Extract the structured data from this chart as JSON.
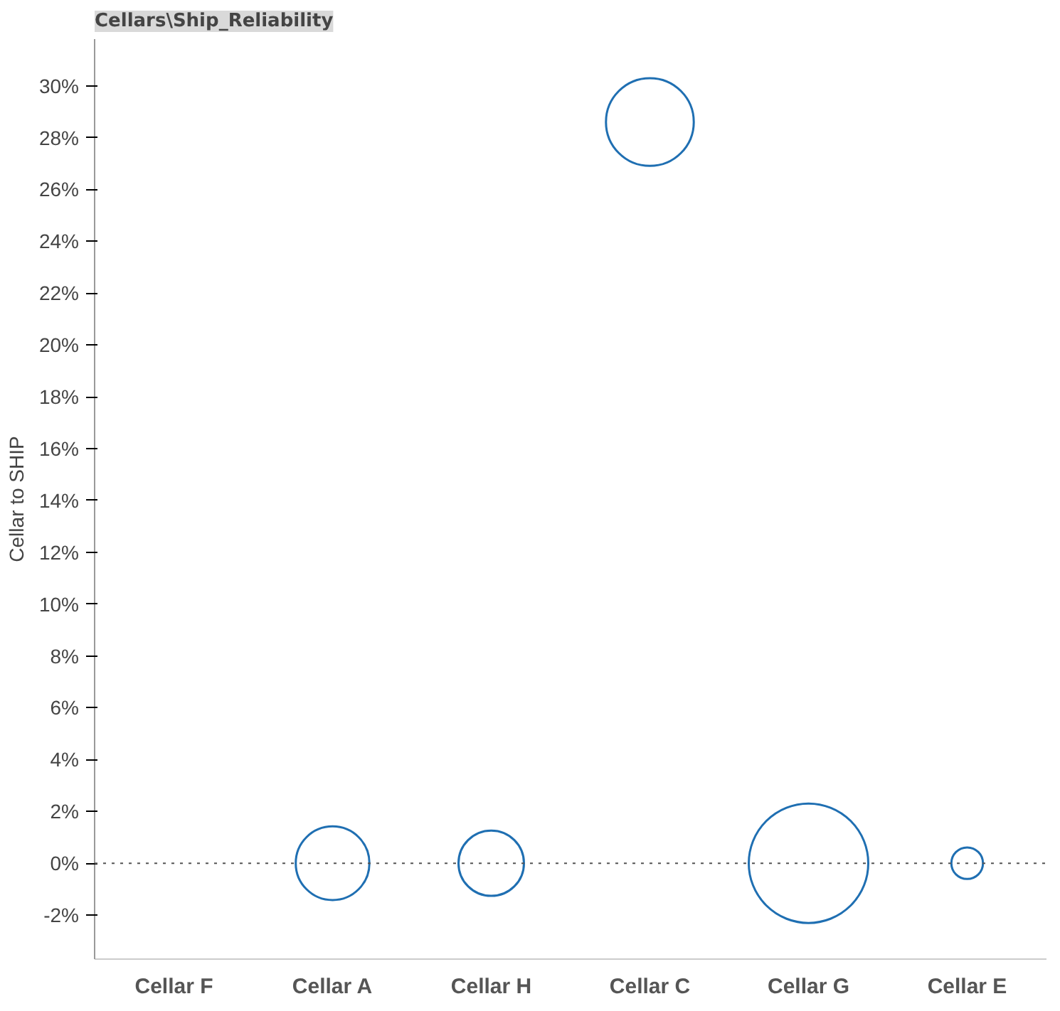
{
  "chart_data": {
    "type": "bubble",
    "title": "Cellars\\Ship_Reliability",
    "ylabel": "Cellar to SHIP",
    "categories": [
      "Cellar F",
      "Cellar A",
      "Cellar H",
      "Cellar C",
      "Cellar G",
      "Cellar E"
    ],
    "series": [
      {
        "color": "#1f6fb2",
        "values": [
          null,
          0,
          0,
          28.6,
          0,
          0
        ],
        "sizes": [
          null,
          0.38,
          0.3,
          0.54,
          1,
          0.07
        ]
      }
    ],
    "ylim": [
      -3.7,
      31.8
    ],
    "yticks": [
      {
        "value": -2,
        "label": "-2%"
      },
      {
        "value": 0,
        "label": "0%"
      },
      {
        "value": 2,
        "label": "2%"
      },
      {
        "value": 4,
        "label": "4%"
      },
      {
        "value": 6,
        "label": "6%"
      },
      {
        "value": 8,
        "label": "8%"
      },
      {
        "value": 10,
        "label": "10%"
      },
      {
        "value": 12,
        "label": "12%"
      },
      {
        "value": 14,
        "label": "14%"
      },
      {
        "value": 16,
        "label": "16%"
      },
      {
        "value": 18,
        "label": "18%"
      },
      {
        "value": 20,
        "label": "20%"
      },
      {
        "value": 22,
        "label": "22%"
      },
      {
        "value": 24,
        "label": "24%"
      },
      {
        "value": 26,
        "label": "26%"
      },
      {
        "value": 28,
        "label": "28%"
      },
      {
        "value": 30,
        "label": "30%"
      }
    ],
    "ref_lines": [
      {
        "axis": "y",
        "value": 0,
        "color": "#555555",
        "line_style": "dotted"
      }
    ],
    "marker": "circle"
  }
}
